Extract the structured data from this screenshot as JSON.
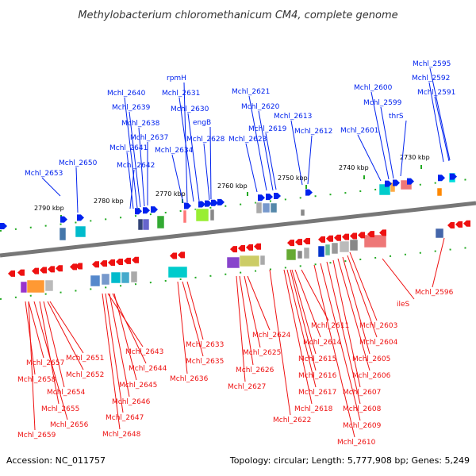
{
  "title": "Methylobacterium chloromethanicum CM4, complete genome",
  "footer": {
    "accession": "Accession: NC_011757",
    "topology": "Topology: circular; Length: 5,777,908 bp; Genes: 5,249"
  },
  "colors": {
    "top_strand": "#0022ee",
    "bottom_strand": "#ee1111",
    "axis": "#777777",
    "tick": "#22aa22"
  },
  "kbp_marks": [
    "2790 kbp",
    "2780 kbp",
    "2770 kbp",
    "2760 kbp",
    "2750 kbp",
    "2740 kbp",
    "2730 kbp"
  ],
  "top_genes": [
    "Mchl_2653",
    "Mchl_2650",
    "Mchl_2640",
    "Mchl_2639",
    "Mchl_2638",
    "Mchl_2637",
    "Mchl_2641",
    "Mchl_2642",
    "rpmH",
    "Mchl_2631",
    "Mchl_2630",
    "engB",
    "Mchl_2634",
    "Mchl_2628",
    "Mchl_2621",
    "Mchl_2620",
    "Mchl_2619",
    "Mchl_2623",
    "Mchl_2613",
    "Mchl_2612",
    "Mchl_2600",
    "Mchl_2599",
    "thrS",
    "Mchl_2601",
    "Mchl_2595",
    "Mchl_2592",
    "Mchl_2591"
  ],
  "bottom_genes": [
    "Mchl_2651",
    "Mchl_2657",
    "Mchl_2652",
    "Mchl_2658",
    "Mchl_2654",
    "Mchl_2655",
    "Mchl_2656",
    "Mchl_2659",
    "Mchl_2643",
    "Mchl_2644",
    "Mchl_2645",
    "Mchl_2646",
    "Mchl_2647",
    "Mchl_2648",
    "Mchl_2633",
    "Mchl_2635",
    "Mchl_2636",
    "Mchl_2624",
    "Mchl_2625",
    "Mchl_2626",
    "Mchl_2627",
    "Mchl_2622",
    "Mchl_2611",
    "Mchl_2614",
    "Mchl_2615",
    "Mchl_2616",
    "Mchl_2617",
    "Mchl_2618",
    "Mchl_2603",
    "Mchl_2604",
    "Mchl_2605",
    "Mchl_2606",
    "Mchl_2607",
    "Mchl_2608",
    "Mchl_2609",
    "Mchl_2610",
    "ileS",
    "Mchl_2596"
  ]
}
